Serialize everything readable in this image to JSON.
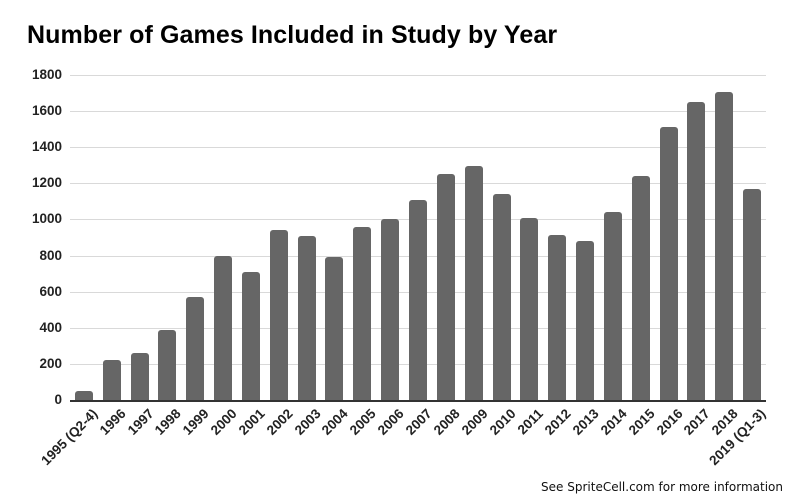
{
  "chart_data": {
    "type": "bar",
    "title": "Number of Games Included in Study by Year",
    "xlabel": "",
    "ylabel": "",
    "ylim": [
      0,
      1800
    ],
    "yticks": [
      0,
      200,
      400,
      600,
      800,
      1000,
      1200,
      1400,
      1600,
      1800
    ],
    "grid": true,
    "legend": null,
    "categories": [
      "1995 (Q2-4)",
      "1996",
      "1997",
      "1998",
      "1999",
      "2000",
      "2001",
      "2002",
      "2003",
      "2004",
      "2005",
      "2006",
      "2007",
      "2008",
      "2009",
      "2010",
      "2011",
      "2012",
      "2013",
      "2014",
      "2015",
      "2016",
      "2017",
      "2018",
      "2019 (Q1-3)"
    ],
    "values": [
      50,
      220,
      260,
      385,
      570,
      800,
      710,
      940,
      910,
      790,
      960,
      1000,
      1110,
      1250,
      1295,
      1140,
      1010,
      915,
      880,
      1040,
      1240,
      1510,
      1650,
      1705,
      1170
    ],
    "bar_color": "#666666",
    "footer": "See SpriteCell.com for more information"
  }
}
